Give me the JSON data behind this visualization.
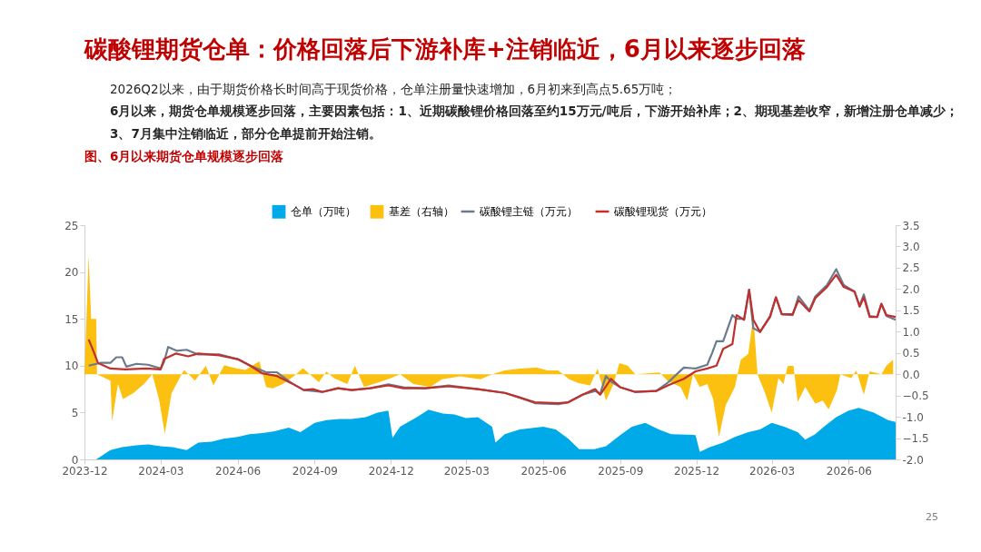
{
  "chart_data": {
    "type": "line",
    "title": "碳酸锂期货仓单：价格回落后下游补库+注销临近，6月以来逐步回落",
    "annotations": [
      "2026Q2以来，由于期货价格长时间高于现货价格，仓单注册量快速增加，6月初来到高点5.65万吨；",
      "6月以来，期货仓单规模逐步回落，主要因素包括：1、近期碳酸锂价格回落至约15万元/吨后，下游开始补库；2、期现基差收窄，新增注册仓单减少；3、7月集中注销临近，部分仓单提前开始注销。",
      "图、6月以来期货仓单规模逐步回落",
      "25"
    ],
    "legend": "top",
    "xlim": [
      "2023-12-01",
      "2026-07-27"
    ],
    "xticks": [
      "2023-12",
      "2024-03",
      "2024-06",
      "2024-09",
      "2024-12",
      "2025-03",
      "2025-06",
      "2025-09",
      "2025-12",
      "2026-03",
      "2026-06"
    ],
    "ylim": [
      0,
      25
    ],
    "yticks": [
      0,
      5,
      10,
      15,
      20,
      25
    ],
    "y2lim": [
      -2,
      3.5
    ],
    "y2ticks": [
      {
        "value": -2,
        "label": "-2.0"
      },
      -1.5,
      {
        "value": -1,
        "label": "-1.0"
      },
      -0.5,
      {
        "value": 0,
        "label": "0.0"
      },
      0.5,
      {
        "value": 1,
        "label": "1.0"
      },
      1.5,
      {
        "value": 2,
        "label": "2.0"
      },
      2.5,
      {
        "value": 3,
        "label": "3.0"
      },
      3.5
    ],
    "series": [
      {
        "name": "仓单（万吨）",
        "type": "area",
        "color": "#00a9e8",
        "x": [
          "2023-12-01",
          "2023-12-15",
          "2024-01-01",
          "2024-01-15",
          "2024-02-01",
          "2024-02-15",
          "2024-03-01",
          "2024-03-15",
          "2024-04-01",
          "2024-04-15",
          "2024-05-01",
          "2024-05-15",
          "2024-06-01",
          "2024-06-15",
          "2024-07-01",
          "2024-07-15",
          "2024-08-01",
          "2024-08-15",
          "2024-09-01",
          "2024-09-15",
          "2024-10-01",
          "2024-10-15",
          "2024-11-01",
          "2024-11-15",
          "2024-11-28",
          "2024-12-03",
          "2024-12-12",
          "2025-01-01",
          "2025-01-15",
          "2025-02-01",
          "2025-02-15",
          "2025-03-01",
          "2025-03-15",
          "2025-04-01",
          "2025-04-05",
          "2025-04-16",
          "2025-05-04",
          "2025-06-01",
          "2025-06-16",
          "2025-07-01",
          "2025-07-14",
          "2025-08-01",
          "2025-08-15",
          "2025-09-01",
          "2025-09-15",
          "2025-10-01",
          "2025-10-17",
          "2025-11-01",
          "2025-11-30",
          "2025-12-05",
          "2025-12-17",
          "2026-01-02",
          "2026-01-16",
          "2026-02-01",
          "2026-02-15",
          "2026-03-01",
          "2026-03-16",
          "2026-04-01",
          "2026-04-10",
          "2026-04-22",
          "2026-05-01",
          "2026-05-17",
          "2026-06-01",
          "2026-06-13",
          "2026-07-01",
          "2026-07-18",
          "2026-07-27"
        ],
        "values": [
          0,
          0,
          1.0,
          1.3,
          1.5,
          1.6,
          1.4,
          1.3,
          1.0,
          1.8,
          1.9,
          2.2,
          2.4,
          2.7,
          2.8,
          3.0,
          3.4,
          2.9,
          3.9,
          4.2,
          4.3,
          4.3,
          4.5,
          5.0,
          5.2,
          2.3,
          3.5,
          4.5,
          5.3,
          4.9,
          4.8,
          4.4,
          4.5,
          3.5,
          1.8,
          2.7,
          3.2,
          3.5,
          3.2,
          2.2,
          1.1,
          1.1,
          1.4,
          2.6,
          3.5,
          3.9,
          3.2,
          2.7,
          2.6,
          0.8,
          1.3,
          1.8,
          2.4,
          2.9,
          3.2,
          3.9,
          3.5,
          2.9,
          2.1,
          2.7,
          3.4,
          4.5,
          5.2,
          5.5,
          5.0,
          4.2,
          4.0
        ]
      },
      {
        "name": "基差（右轴）",
        "type": "area",
        "axis": "y2",
        "color": "#fcc010",
        "x": [
          "2023-12-01",
          "2023-12-06",
          "2023-12-09",
          "2023-12-15",
          "2023-12-16",
          "2024-01-01",
          "2024-01-03",
          "2024-01-10",
          "2024-01-16",
          "2024-01-28",
          "2024-02-10",
          "2024-02-20",
          "2024-02-28",
          "2024-03-06",
          "2024-03-14",
          "2024-03-26",
          "2024-03-29",
          "2024-04-11",
          "2024-04-24",
          "2024-05-03",
          "2024-05-16",
          "2024-06-01",
          "2024-06-10",
          "2024-06-27",
          "2024-07-05",
          "2024-07-13",
          "2024-07-25",
          "2024-08-07",
          "2024-08-18",
          "2024-08-29",
          "2024-09-06",
          "2024-09-15",
          "2024-09-24",
          "2024-10-10",
          "2024-10-19",
          "2024-10-30",
          "2024-11-17",
          "2024-12-01",
          "2024-12-12",
          "2024-12-28",
          "2025-01-17",
          "2025-01-31",
          "2025-02-22",
          "2025-03-18",
          "2025-04-01",
          "2025-04-16",
          "2025-05-04",
          "2025-05-24",
          "2025-06-06",
          "2025-06-19",
          "2025-07-02",
          "2025-07-13",
          "2025-07-27",
          "2025-08-05",
          "2025-08-15",
          "2025-08-24",
          "2025-08-31",
          "2025-09-10",
          "2025-09-19",
          "2025-10-18",
          "2025-10-28",
          "2025-11-12",
          "2025-11-20",
          "2025-11-27",
          "2025-12-05",
          "2025-12-14",
          "2025-12-21",
          "2025-12-28",
          "2026-01-05",
          "2026-01-16",
          "2026-01-23",
          "2026-02-01",
          "2026-02-07",
          "2026-02-12",
          "2026-02-21",
          "2026-03-01",
          "2026-03-09",
          "2026-03-15",
          "2026-03-20",
          "2026-03-27",
          "2026-04-01",
          "2026-04-10",
          "2026-04-22",
          "2026-05-01",
          "2026-05-08",
          "2026-05-18",
          "2026-05-22",
          "2026-06-04",
          "2026-06-10",
          "2026-06-19",
          "2026-06-26",
          "2026-07-10",
          "2026-07-16",
          "2026-07-24"
        ],
        "values": [
          0,
          2.78,
          1.3,
          1.3,
          0,
          -0.15,
          -1.1,
          -0.23,
          -0.58,
          -0.45,
          -0.23,
          0,
          -0.58,
          -1.4,
          -0.45,
          0,
          0.1,
          -0.15,
          0.2,
          -0.26,
          0.21,
          0.13,
          0.1,
          0.3,
          -0.3,
          -0.33,
          -0.23,
          -0.05,
          0.14,
          -0.05,
          -0.19,
          0.06,
          -0.09,
          -0.23,
          0.2,
          -0.3,
          -0.19,
          -0.09,
          0,
          -0.23,
          -0.3,
          -0.12,
          -0.05,
          -0.12,
          0,
          0.09,
          0.13,
          0.16,
          0.09,
          0.09,
          -0.12,
          -0.21,
          -0.26,
          0.13,
          -0.62,
          -0.23,
          0.26,
          0.2,
          0,
          0.04,
          -0.16,
          -0.3,
          -0.62,
          0,
          -0.3,
          -0.23,
          -0.58,
          -1.47,
          -0.73,
          -0.3,
          0.34,
          0.48,
          1.37,
          0,
          -0.44,
          -0.9,
          -0.09,
          -0.23,
          0.19,
          0.2,
          -0.65,
          -0.3,
          -0.69,
          -0.62,
          -0.83,
          -0.37,
          0,
          -0.09,
          0.09,
          -0.48,
          0.07,
          0,
          0.2,
          0.34
        ]
      },
      {
        "name": "碳酸锂主链（万元）",
        "color": "#6b7b8c",
        "x": [
          "2023-12-06",
          "2023-12-20",
          "2024-01-01",
          "2024-01-08",
          "2024-01-15",
          "2024-01-20",
          "2024-02-01",
          "2024-02-15",
          "2024-03-01",
          "2024-03-05",
          "2024-03-10",
          "2024-03-20",
          "2024-04-01",
          "2024-04-15",
          "2024-05-10",
          "2024-06-01",
          "2024-06-16",
          "2024-07-05",
          "2024-07-18",
          "2024-08-05",
          "2024-08-19",
          "2024-09-10",
          "2024-09-29",
          "2024-10-15",
          "2024-11-06",
          "2024-11-28",
          "2024-12-16",
          "2025-01-11",
          "2025-02-08",
          "2025-03-15",
          "2025-04-16",
          "2025-05-04",
          "2025-05-22",
          "2025-06-19",
          "2025-07-01",
          "2025-07-18",
          "2025-08-02",
          "2025-08-08",
          "2025-08-15",
          "2025-08-21",
          "2025-09-01",
          "2025-09-19",
          "2025-10-14",
          "2025-10-28",
          "2025-11-16",
          "2025-11-30",
          "2025-12-14",
          "2025-12-20",
          "2025-12-25",
          "2026-01-02",
          "2026-01-13",
          "2026-01-18",
          "2026-01-27",
          "2026-02-02",
          "2026-02-07",
          "2026-02-15",
          "2026-02-27",
          "2026-03-06",
          "2026-03-13",
          "2026-03-26",
          "2026-04-02",
          "2026-04-15",
          "2026-04-22",
          "2026-05-06",
          "2026-05-17",
          "2026-05-26",
          "2026-06-08",
          "2026-06-14",
          "2026-06-19",
          "2026-06-26",
          "2026-07-05",
          "2026-07-10",
          "2026-07-16",
          "2026-07-27"
        ],
        "values": [
          10.0,
          10.3,
          10.3,
          10.9,
          10.9,
          9.9,
          10.2,
          10.1,
          9.7,
          10.4,
          12.0,
          11.6,
          11.7,
          11.2,
          11.2,
          10.7,
          10.0,
          9.3,
          9.3,
          8.1,
          7.4,
          7.2,
          7.6,
          7.4,
          7.6,
          8.0,
          7.7,
          7.6,
          7.9,
          7.5,
          7.1,
          6.6,
          6.0,
          5.9,
          6.1,
          6.9,
          7.3,
          7.0,
          8.9,
          8.3,
          7.7,
          7.2,
          7.3,
          8.2,
          9.8,
          9.7,
          10.1,
          11.4,
          12.6,
          12.6,
          15.4,
          15.0,
          15.0,
          18.1,
          14.0,
          13.6,
          15.3,
          17.3,
          15.5,
          15.4,
          17.4,
          15.9,
          17.4,
          18.6,
          20.3,
          18.6,
          17.9,
          16.4,
          17.6,
          15.3,
          15.2,
          16.6,
          15.3,
          14.9
        ]
      },
      {
        "name": "碳酸锂现货（万元）",
        "color": "#c0312e",
        "x": [
          "2023-12-06",
          "2023-12-12",
          "2023-12-17",
          "2024-01-01",
          "2024-01-19",
          "2024-02-13",
          "2024-03-01",
          "2024-03-05",
          "2024-03-19",
          "2024-04-03",
          "2024-04-15",
          "2024-05-10",
          "2024-06-01",
          "2024-06-16",
          "2024-06-30",
          "2024-07-18",
          "2024-08-05",
          "2024-08-19",
          "2024-08-30",
          "2024-09-10",
          "2024-09-29",
          "2024-10-15",
          "2024-11-06",
          "2024-11-28",
          "2024-12-16",
          "2025-01-11",
          "2025-02-08",
          "2025-03-15",
          "2025-04-16",
          "2025-05-04",
          "2025-05-22",
          "2025-06-19",
          "2025-07-01",
          "2025-07-18",
          "2025-08-02",
          "2025-08-08",
          "2025-08-21",
          "2025-09-01",
          "2025-09-19",
          "2025-10-14",
          "2025-10-28",
          "2025-11-16",
          "2025-11-30",
          "2025-12-14",
          "2025-12-25",
          "2026-01-02",
          "2026-01-13",
          "2026-01-18",
          "2026-01-27",
          "2026-02-02",
          "2026-02-07",
          "2026-02-15",
          "2026-02-27",
          "2026-03-06",
          "2026-03-13",
          "2026-03-26",
          "2026-04-02",
          "2026-04-15",
          "2026-04-22",
          "2026-05-06",
          "2026-05-17",
          "2026-05-26",
          "2026-06-08",
          "2026-06-14",
          "2026-06-19",
          "2026-06-26",
          "2026-07-05",
          "2026-07-10",
          "2026-07-16",
          "2026-07-27"
        ],
        "values": [
          12.8,
          11.5,
          10.3,
          9.7,
          9.6,
          9.7,
          9.6,
          10.7,
          11.3,
          11.0,
          11.3,
          11.1,
          10.7,
          10.0,
          9.2,
          8.9,
          8.1,
          7.4,
          7.5,
          7.2,
          7.6,
          7.4,
          7.6,
          7.9,
          7.6,
          7.6,
          7.8,
          7.5,
          7.1,
          6.6,
          6.1,
          6.0,
          6.1,
          6.9,
          7.5,
          6.9,
          8.6,
          7.7,
          7.2,
          7.3,
          7.9,
          8.6,
          9.4,
          9.7,
          10.0,
          11.8,
          12.3,
          15.4,
          14.9,
          18.1,
          14.9,
          13.6,
          15.2,
          17.3,
          15.5,
          15.5,
          17.0,
          15.8,
          17.2,
          18.4,
          19.7,
          18.4,
          17.9,
          16.3,
          17.3,
          15.2,
          15.2,
          16.6,
          15.4,
          15.2
        ]
      }
    ]
  }
}
